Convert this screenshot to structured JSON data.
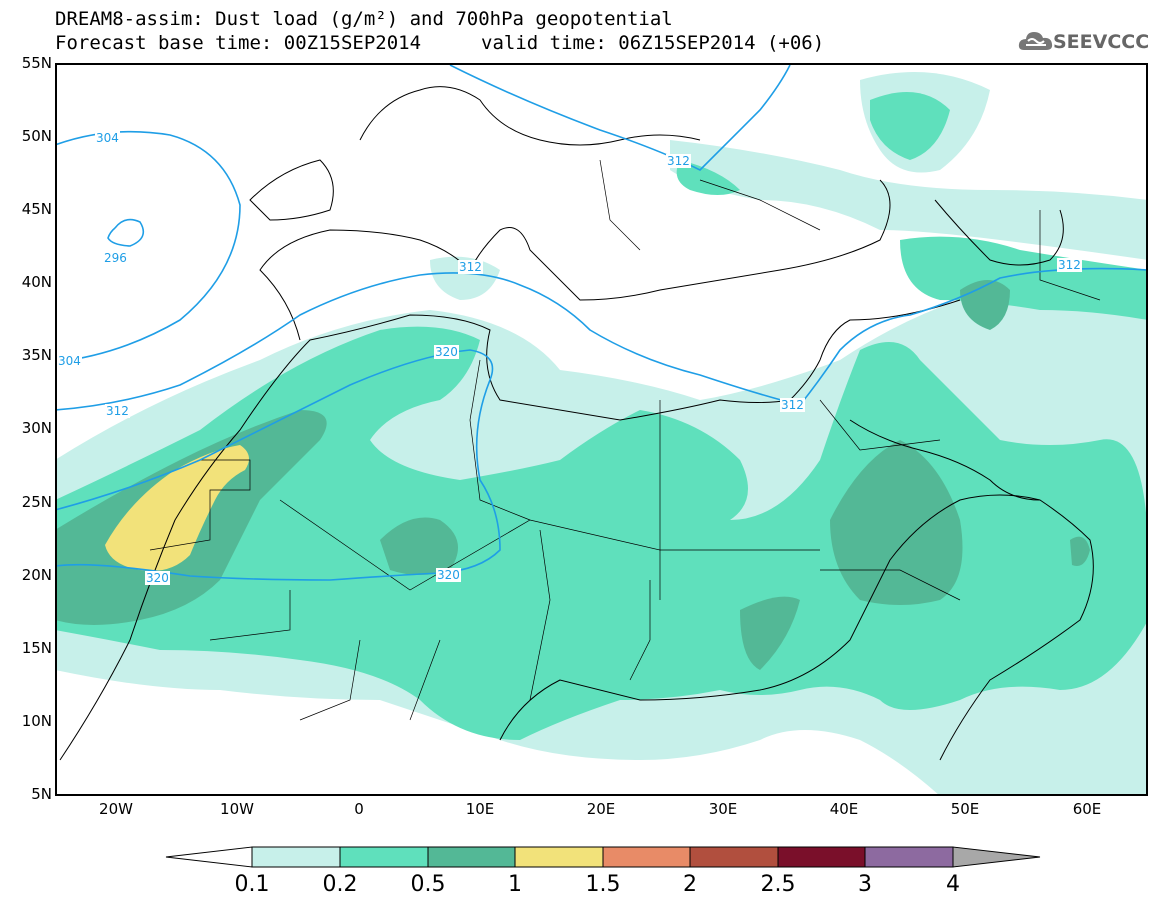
{
  "header": {
    "line1": "DREAM8-assim: Dust load (g/m²) and 700hPa geopotential",
    "line2_left": "Forecast base time: 00Z15SEP2014",
    "line2_right": "valid time: 06Z15SEP2014 (+06)"
  },
  "logo": {
    "text": "SEEVCCC",
    "icon": "cloud-logo-icon"
  },
  "map": {
    "lat_labels": [
      "55N",
      "50N",
      "45N",
      "40N",
      "35N",
      "30N",
      "25N",
      "20N",
      "15N",
      "10N",
      "5N"
    ],
    "lon_labels": [
      "20W",
      "10W",
      "0",
      "10E",
      "20E",
      "30E",
      "40E",
      "50E",
      "60E"
    ],
    "contour_labels": [
      "304",
      "296",
      "304",
      "312",
      "312",
      "320",
      "320",
      "312",
      "312",
      "320",
      "312"
    ]
  },
  "colorbar": {
    "labels": [
      "0.1",
      "0.2",
      "0.5",
      "1",
      "1.5",
      "2",
      "2.5",
      "3",
      "4"
    ],
    "colors": [
      "#ffffff",
      "#c7f0ea",
      "#5fe0bc",
      "#53b896",
      "#f2e27a",
      "#e88b67",
      "#b14f3e",
      "#7a0f2a",
      "#8d6aa0",
      "#a8a8a8"
    ]
  },
  "colors": {
    "dust_01": "#c7f0ea",
    "dust_02": "#5fe0bc",
    "dust_05": "#53b896",
    "dust_1": "#f2e27a",
    "contour": "#1f9ee6",
    "coast": "#000000"
  }
}
